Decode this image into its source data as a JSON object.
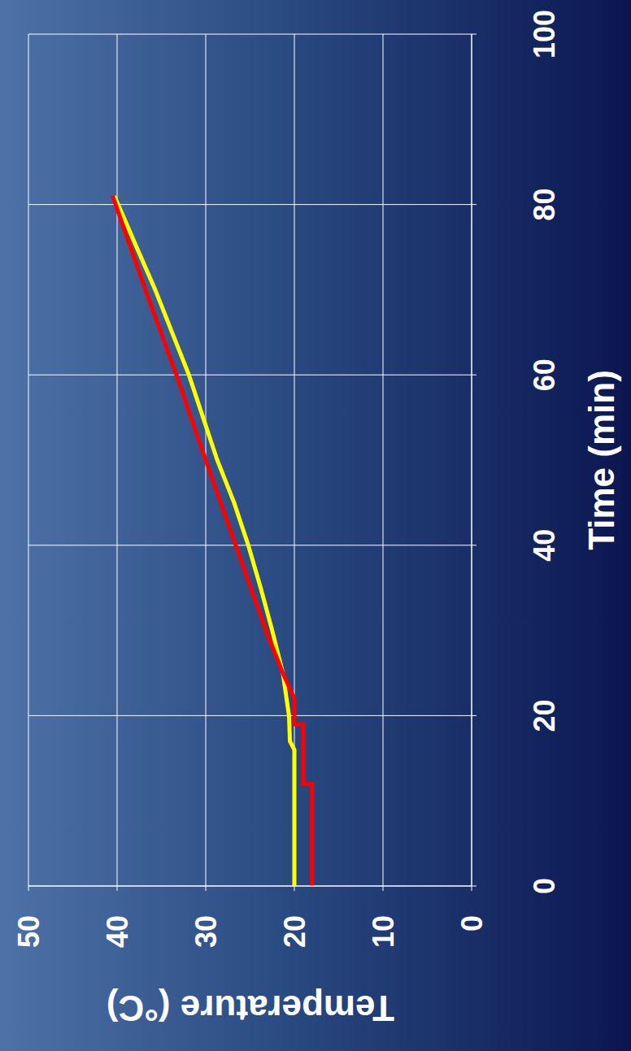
{
  "chart_data": {
    "type": "line",
    "x_label": "Time (min)",
    "y_label": "Temperature (°C)",
    "xlim": [
      0,
      100
    ],
    "xticks": [
      0,
      20,
      40,
      60,
      80,
      100
    ],
    "ylim": [
      0,
      50
    ],
    "yticks": [
      0,
      10,
      20,
      30,
      40,
      50
    ],
    "grid": true,
    "series": [
      {
        "color": "#ffff00",
        "x": [
          0,
          16,
          17,
          20,
          25,
          30,
          35,
          40,
          45,
          50,
          55,
          60,
          65,
          70,
          75,
          81
        ],
        "values": [
          20,
          20,
          20.5,
          20.6,
          21.3,
          22.5,
          23.8,
          25.2,
          26.8,
          28.7,
          30.3,
          31.9,
          33.8,
          35.7,
          37.8,
          40.3
        ]
      },
      {
        "color": "#ff0000",
        "x": [
          0,
          12,
          12,
          19,
          19,
          22,
          25,
          30,
          40,
          50,
          60,
          70,
          81
        ],
        "values": [
          18,
          18,
          19,
          19,
          20,
          20,
          21.3,
          23.2,
          26.6,
          30,
          33.3,
          36.8,
          40.5
        ]
      }
    ]
  }
}
